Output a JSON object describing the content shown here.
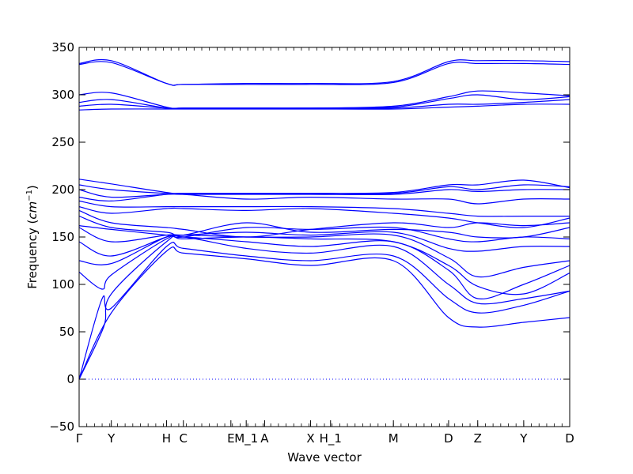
{
  "chart_data": {
    "type": "line",
    "xlabel": "Wave vector",
    "ylabel": "Frequency",
    "ylabel_unit": "cm",
    "ylabel_unit_exponent": "−1",
    "ylim": [
      -50,
      350
    ],
    "yticks": [
      -50,
      0,
      50,
      100,
      150,
      200,
      250,
      300,
      350
    ],
    "xlim": [
      0,
      32
    ],
    "high_symmetry_points": [
      {
        "label": "Γ",
        "x": 0
      },
      {
        "label": "Y",
        "x": 2.1
      },
      {
        "label": "H",
        "x": 5.7
      },
      {
        "label": "C",
        "x": 6.8
      },
      {
        "label": "E",
        "x": 9.9
      },
      {
        "label": "M_1",
        "x": 10.9
      },
      {
        "label": "A",
        "x": 12.1
      },
      {
        "label": "X",
        "x": 15.1
      },
      {
        "label": "H_1",
        "x": 16.4
      },
      {
        "label": "M",
        "x": 20.5
      },
      {
        "label": "D",
        "x": 24.1
      },
      {
        "label": "Z",
        "x": 26.0
      },
      {
        "label": "Y",
        "x": 29.0
      },
      {
        "label": "D",
        "x": 32.0
      }
    ],
    "zero_line": true,
    "line_color": "#0000ff",
    "series": [
      {
        "x": [
          0,
          2.1,
          5.7,
          6.8,
          10.9,
          15.1,
          20.5,
          24.1,
          26.0,
          29.0,
          32.0
        ],
        "y": [
          0,
          70,
          135,
          133,
          127,
          120,
          125,
          65,
          55,
          60,
          65
        ]
      },
      {
        "x": [
          0,
          1.5,
          2.1,
          5.7,
          6.8,
          10.9,
          15.1,
          20.5,
          24.1,
          26.0,
          29.0,
          32.0
        ],
        "y": [
          0,
          85,
          75,
          140,
          138,
          130,
          125,
          130,
          85,
          70,
          78,
          93
        ]
      },
      {
        "x": [
          0,
          1.6,
          2.1,
          5.7,
          6.8,
          10.9,
          15.1,
          20.5,
          24.1,
          26.0,
          29.0,
          32.0
        ],
        "y": [
          0,
          55,
          90,
          145,
          150,
          138,
          133,
          140,
          100,
          80,
          85,
          93
        ]
      },
      {
        "x": [
          0,
          1.5,
          2.1,
          5.7,
          6.8,
          10.9,
          15.1,
          20.5,
          24.1,
          26.0,
          29.0,
          32.0
        ],
        "y": [
          113,
          95,
          110,
          148,
          150,
          145,
          140,
          145,
          115,
          85,
          100,
          120
        ]
      },
      {
        "x": [
          0,
          2.1,
          5.7,
          6.8,
          10.9,
          15.1,
          20.5,
          24.1,
          26.0,
          29.0,
          32.0
        ],
        "y": [
          125,
          122,
          150,
          148,
          150,
          148,
          145,
          120,
          98,
          90,
          112
        ]
      },
      {
        "x": [
          0,
          2.1,
          5.7,
          6.8,
          10.9,
          15.1,
          20.5,
          24.1,
          26.0,
          29.0,
          32.0
        ],
        "y": [
          145,
          130,
          150,
          152,
          150,
          150,
          152,
          128,
          108,
          118,
          125
        ]
      },
      {
        "x": [
          0,
          2.1,
          5.7,
          6.8,
          10.9,
          15.1,
          20.5,
          24.1,
          26.0,
          29.0,
          32.0
        ],
        "y": [
          160,
          145,
          152,
          152,
          155,
          152,
          155,
          138,
          135,
          140,
          140
        ]
      },
      {
        "x": [
          0,
          2.1,
          5.7,
          6.8,
          10.9,
          15.1,
          20.5,
          24.1,
          26.0,
          29.0,
          32.0
        ],
        "y": [
          162,
          158,
          152,
          150,
          160,
          158,
          160,
          148,
          145,
          150,
          148
        ]
      },
      {
        "x": [
          0,
          2.1,
          5.7,
          6.8,
          10.9,
          15.1,
          20.5,
          24.1,
          26.0,
          29.0,
          32.0
        ],
        "y": [
          172,
          160,
          155,
          152,
          165,
          155,
          158,
          155,
          150,
          150,
          160
        ]
      },
      {
        "x": [
          0,
          2.1,
          5.7,
          6.8,
          10.9,
          15.1,
          20.5,
          24.1,
          26.0,
          29.0,
          32.0
        ],
        "y": [
          178,
          165,
          160,
          158,
          150,
          158,
          165,
          160,
          165,
          162,
          165
        ]
      },
      {
        "x": [
          0,
          2.1,
          5.7,
          6.8,
          10.9,
          15.1,
          20.5,
          24.1,
          26.0,
          29.0,
          32.0
        ],
        "y": [
          182,
          175,
          180,
          180,
          178,
          180,
          175,
          170,
          165,
          160,
          170
        ]
      },
      {
        "x": [
          0,
          2.1,
          5.7,
          6.8,
          10.9,
          15.1,
          20.5,
          24.1,
          26.0,
          29.0,
          32.0
        ],
        "y": [
          188,
          182,
          182,
          182,
          182,
          182,
          180,
          175,
          172,
          172,
          172
        ]
      },
      {
        "x": [
          0,
          2.1,
          5.7,
          6.8,
          10.9,
          15.1,
          20.5,
          24.1,
          26.0,
          29.0,
          32.0
        ],
        "y": [
          192,
          188,
          195,
          195,
          190,
          192,
          190,
          190,
          185,
          190,
          190
        ]
      },
      {
        "x": [
          0,
          2.1,
          5.7,
          6.8,
          10.9,
          15.1,
          20.5,
          24.1,
          26.0,
          29.0,
          32.0
        ],
        "y": [
          200,
          192,
          195,
          195,
          195,
          195,
          195,
          200,
          198,
          200,
          200
        ]
      },
      {
        "x": [
          0,
          2.1,
          5.7,
          6.8,
          10.9,
          15.1,
          20.5,
          24.1,
          26.0,
          29.0,
          32.0
        ],
        "y": [
          205,
          200,
          196,
          196,
          196,
          196,
          196,
          203,
          200,
          205,
          203
        ]
      },
      {
        "x": [
          0,
          2.1,
          5.7,
          6.8,
          10.9,
          15.1,
          20.5,
          24.1,
          26.0,
          29.0,
          32.0
        ],
        "y": [
          211,
          206,
          197,
          196,
          196,
          196,
          197,
          205,
          205,
          210,
          202
        ]
      },
      {
        "x": [
          0,
          2.1,
          5.7,
          6.8,
          10.9,
          15.1,
          20.5,
          24.1,
          26.0,
          29.0,
          32.0
        ],
        "y": [
          284,
          285,
          285,
          285,
          285,
          285,
          285,
          287,
          288,
          290,
          290
        ]
      },
      {
        "x": [
          0,
          2.1,
          5.7,
          6.8,
          10.9,
          15.1,
          20.5,
          24.1,
          26.0,
          29.0,
          32.0
        ],
        "y": [
          288,
          290,
          286,
          286,
          286,
          286,
          286,
          290,
          290,
          292,
          295
        ]
      },
      {
        "x": [
          0,
          2.1,
          5.7,
          6.8,
          10.9,
          15.1,
          20.5,
          24.1,
          26.0,
          29.0,
          32.0
        ],
        "y": [
          292,
          295,
          286,
          286,
          286,
          286,
          287,
          296,
          300,
          295,
          298
        ]
      },
      {
        "x": [
          0,
          2.1,
          5.7,
          6.8,
          10.9,
          15.1,
          20.5,
          24.1,
          26.0,
          29.0,
          32.0
        ],
        "y": [
          300,
          302,
          287,
          286,
          286,
          286,
          288,
          298,
          304,
          302,
          299
        ]
      },
      {
        "x": [
          0,
          2.1,
          5.7,
          6.8,
          10.9,
          15.1,
          20.5,
          24.1,
          26.0,
          29.0,
          32.0
        ],
        "y": [
          332,
          334,
          312,
          311,
          311,
          311,
          313,
          333,
          333,
          333,
          332
        ]
      },
      {
        "x": [
          0,
          2.1,
          5.7,
          6.8,
          10.9,
          15.1,
          20.5,
          24.1,
          26.0,
          29.0,
          32.0
        ],
        "y": [
          333,
          336,
          312,
          311,
          312,
          312,
          314,
          335,
          336,
          336,
          335
        ]
      }
    ]
  }
}
